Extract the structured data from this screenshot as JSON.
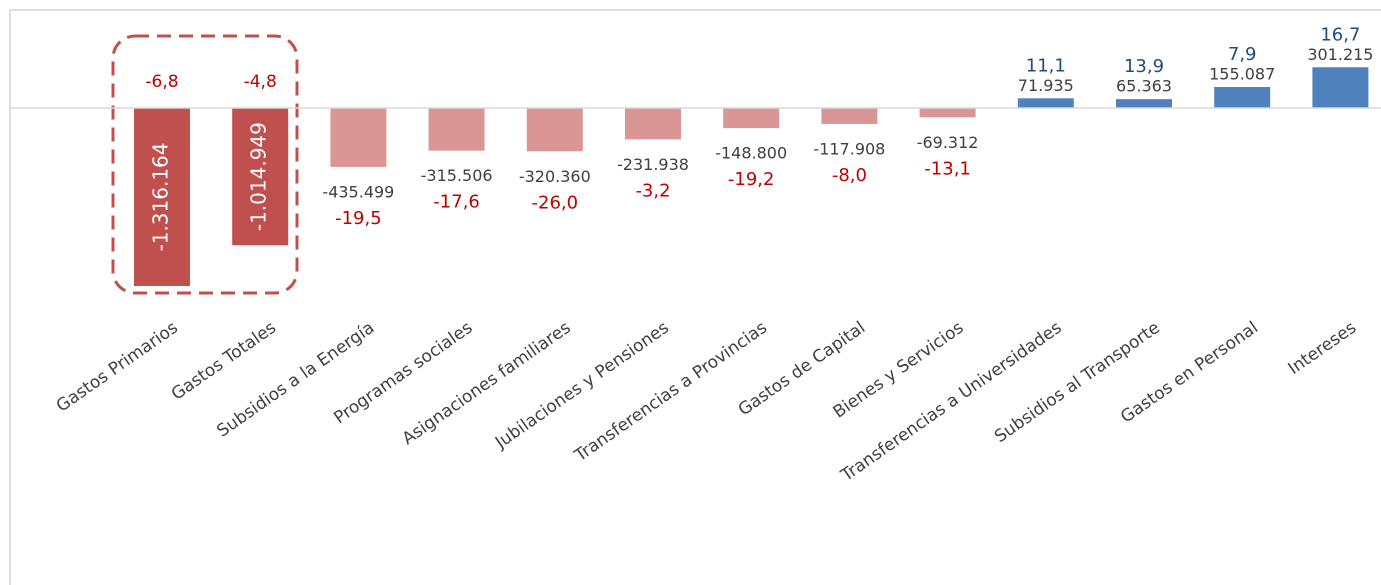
{
  "chart_data": {
    "type": "bar",
    "categories": [
      "Gastos Primarios",
      "Gastos Totales",
      "Subsidios a la Energía",
      "Programas sociales",
      "Asignaciones familiares",
      "Jubilaciones y Pensiones",
      "Transferencias a Provincias",
      "Gastos de Capital",
      "Bienes y Servicios",
      "Transferencias a Universidades",
      "Subsidios al Transporte",
      "Gastos en Personal",
      "Intereses"
    ],
    "values": [
      -1316164,
      -1014949,
      -435499,
      -315506,
      -320360,
      -231938,
      -148800,
      -117908,
      -69312,
      71935,
      65363,
      155087,
      301215
    ],
    "value_labels": [
      "-1.316.164",
      "-1.014.949",
      "-435.499",
      "-315.506",
      "-320.360",
      "-231.938",
      "-148.800",
      "-117.908",
      "-69.312",
      "71.935",
      "65.363",
      "155.087",
      "301.215"
    ],
    "changes": [
      -6.8,
      -4.8,
      -19.5,
      -17.6,
      -26.0,
      -3.2,
      -19.2,
      -8.0,
      -13.1,
      11.1,
      13.9,
      7.9,
      16.7
    ],
    "change_labels": [
      "-6,8",
      "-4,8",
      "-19,5",
      "-17,6",
      "-26,0",
      "-3,2",
      "-19,2",
      "-8,0",
      "-13,1",
      "11,1",
      "13,9",
      "7,9",
      "16,7"
    ],
    "colors": [
      "#c0504d",
      "#c0504d",
      "#d99694",
      "#d99694",
      "#d99694",
      "#d99694",
      "#d99694",
      "#d99694",
      "#d99694",
      "#4f81bd",
      "#4f81bd",
      "#4f81bd",
      "#4f81bd"
    ]
  }
}
